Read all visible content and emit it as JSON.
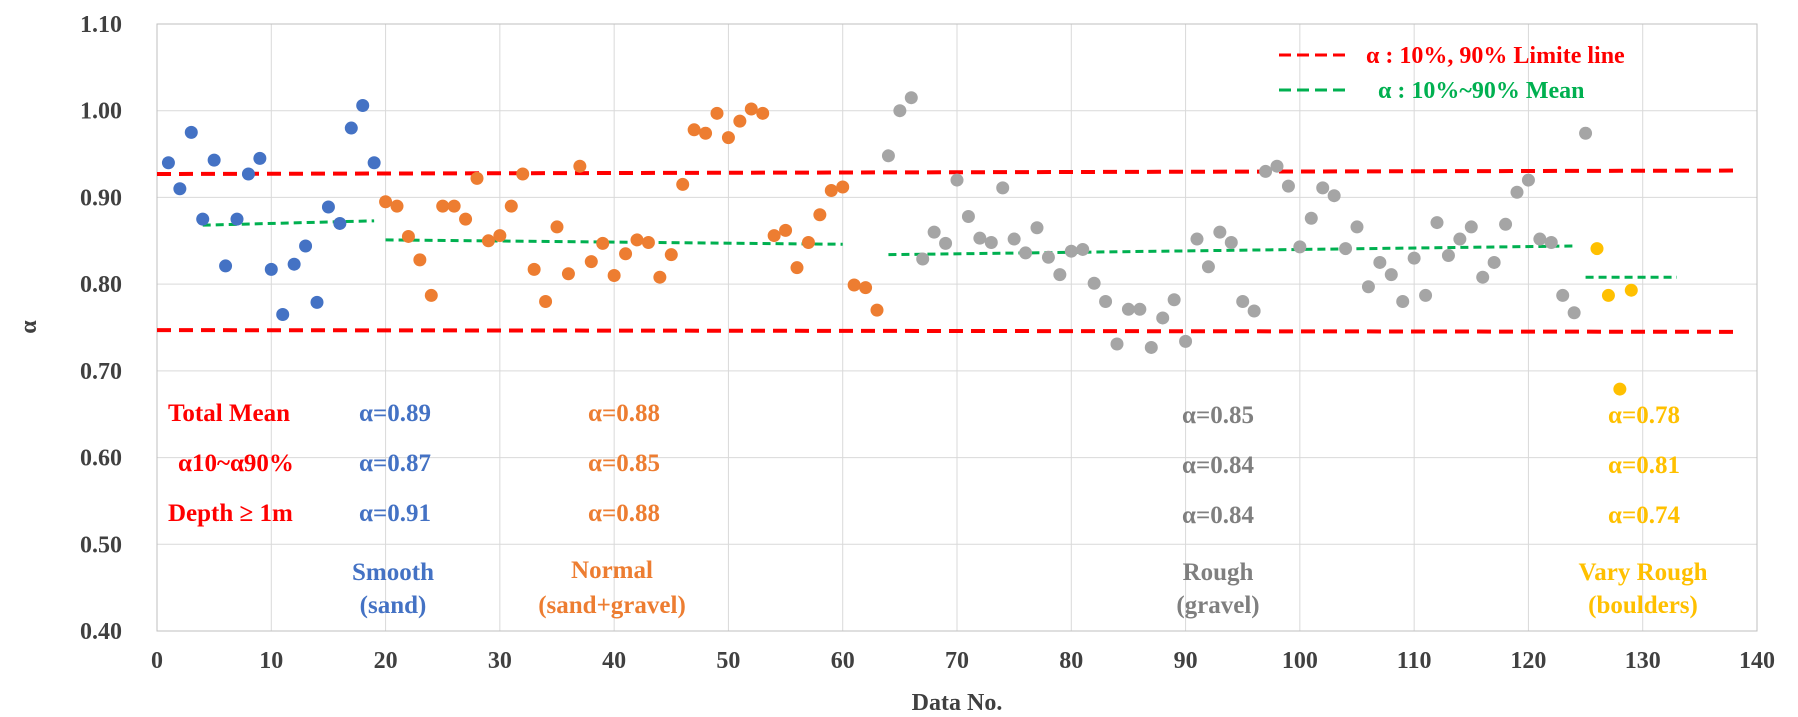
{
  "chart_data": {
    "type": "scatter",
    "xlabel": "Data No.",
    "ylabel": "α",
    "xlim": [
      0,
      140
    ],
    "ylim": [
      0.4,
      1.1
    ],
    "x_ticks": [
      "0",
      "10",
      "20",
      "30",
      "40",
      "50",
      "60",
      "70",
      "80",
      "90",
      "100",
      "110",
      "120",
      "130",
      "140"
    ],
    "y_ticks": [
      "0.40",
      "0.50",
      "0.60",
      "0.70",
      "0.80",
      "0.90",
      "1.00",
      "1.10"
    ],
    "grid": true,
    "legend_position": "top-right",
    "legend": [
      {
        "label": "α : 10%, 90% Limite line",
        "color": "#ff0000"
      },
      {
        "label": "α : 10%~90% Mean",
        "color": "#00b050"
      }
    ],
    "limit_lines": [
      {
        "x": [
          0,
          138
        ],
        "y": [
          0.747,
          0.745
        ],
        "color": "#ff0000"
      },
      {
        "x": [
          0,
          138
        ],
        "y": [
          0.927,
          0.931
        ],
        "color": "#ff0000"
      }
    ],
    "mean_lines": [
      {
        "x": [
          4,
          19
        ],
        "y": [
          0.868,
          0.873
        ]
      },
      {
        "x": [
          20,
          60
        ],
        "y": [
          0.851,
          0.846
        ]
      },
      {
        "x": [
          64,
          124
        ],
        "y": [
          0.834,
          0.844
        ]
      },
      {
        "x": [
          125,
          133
        ],
        "y": [
          0.808,
          0.808
        ]
      }
    ],
    "series": [
      {
        "name": "Smooth (sand)",
        "color": "#4472c4",
        "points": [
          [
            1,
            0.94
          ],
          [
            2,
            0.91
          ],
          [
            3,
            0.975
          ],
          [
            4,
            0.875
          ],
          [
            5,
            0.943
          ],
          [
            6,
            0.821
          ],
          [
            7,
            0.875
          ],
          [
            8,
            0.927
          ],
          [
            9,
            0.945
          ],
          [
            10,
            0.817
          ],
          [
            11,
            0.765
          ],
          [
            12,
            0.823
          ],
          [
            13,
            0.844
          ],
          [
            14,
            0.779
          ],
          [
            15,
            0.889
          ],
          [
            16,
            0.87
          ],
          [
            17,
            0.98
          ],
          [
            18,
            1.006
          ],
          [
            19,
            0.94
          ]
        ]
      },
      {
        "name": "Normal (sand+gravel)",
        "color": "#ed7d31",
        "points": [
          [
            20,
            0.895
          ],
          [
            21,
            0.89
          ],
          [
            22,
            0.855
          ],
          [
            23,
            0.828
          ],
          [
            24,
            0.787
          ],
          [
            25,
            0.89
          ],
          [
            26,
            0.89
          ],
          [
            27,
            0.875
          ],
          [
            28,
            0.922
          ],
          [
            29,
            0.85
          ],
          [
            30,
            0.856
          ],
          [
            31,
            0.89
          ],
          [
            32,
            0.927
          ],
          [
            33,
            0.817
          ],
          [
            34,
            0.78
          ],
          [
            35,
            0.866
          ],
          [
            36,
            0.812
          ],
          [
            37,
            0.936
          ],
          [
            38,
            0.826
          ],
          [
            39,
            0.847
          ],
          [
            40,
            0.81
          ],
          [
            41,
            0.835
          ],
          [
            42,
            0.851
          ],
          [
            43,
            0.848
          ],
          [
            44,
            0.808
          ],
          [
            45,
            0.834
          ],
          [
            46,
            0.915
          ],
          [
            47,
            0.978
          ],
          [
            48,
            0.974
          ],
          [
            49,
            0.997
          ],
          [
            50,
            0.969
          ],
          [
            51,
            0.988
          ],
          [
            52,
            1.002
          ],
          [
            53,
            0.997
          ],
          [
            54,
            0.856
          ],
          [
            55,
            0.862
          ],
          [
            56,
            0.819
          ],
          [
            57,
            0.848
          ],
          [
            58,
            0.88
          ],
          [
            59,
            0.908
          ],
          [
            60,
            0.912
          ],
          [
            61,
            0.799
          ],
          [
            62,
            0.796
          ],
          [
            63,
            0.77
          ]
        ]
      },
      {
        "name": "Rough (gravel)",
        "color": "#a5a5a5",
        "points": [
          [
            64,
            0.948
          ],
          [
            65,
            1.0
          ],
          [
            66,
            1.015
          ],
          [
            67,
            0.829
          ],
          [
            68,
            0.86
          ],
          [
            69,
            0.847
          ],
          [
            70,
            0.92
          ],
          [
            71,
            0.878
          ],
          [
            72,
            0.853
          ],
          [
            73,
            0.848
          ],
          [
            74,
            0.911
          ],
          [
            75,
            0.852
          ],
          [
            76,
            0.836
          ],
          [
            77,
            0.865
          ],
          [
            78,
            0.831
          ],
          [
            79,
            0.811
          ],
          [
            80,
            0.838
          ],
          [
            81,
            0.84
          ],
          [
            82,
            0.801
          ],
          [
            83,
            0.78
          ],
          [
            84,
            0.731
          ],
          [
            85,
            0.771
          ],
          [
            86,
            0.771
          ],
          [
            87,
            0.727
          ],
          [
            88,
            0.761
          ],
          [
            89,
            0.782
          ],
          [
            90,
            0.734
          ],
          [
            91,
            0.852
          ],
          [
            92,
            0.82
          ],
          [
            93,
            0.86
          ],
          [
            94,
            0.848
          ],
          [
            95,
            0.78
          ],
          [
            96,
            0.769
          ],
          [
            97,
            0.93
          ],
          [
            98,
            0.936
          ],
          [
            99,
            0.913
          ],
          [
            100,
            0.843
          ],
          [
            101,
            0.876
          ],
          [
            102,
            0.911
          ],
          [
            103,
            0.902
          ],
          [
            104,
            0.841
          ],
          [
            105,
            0.866
          ],
          [
            106,
            0.797
          ],
          [
            107,
            0.825
          ],
          [
            108,
            0.811
          ],
          [
            109,
            0.78
          ],
          [
            110,
            0.83
          ],
          [
            111,
            0.787
          ],
          [
            112,
            0.871
          ],
          [
            113,
            0.833
          ],
          [
            114,
            0.852
          ],
          [
            115,
            0.866
          ],
          [
            116,
            0.808
          ],
          [
            117,
            0.825
          ],
          [
            118,
            0.869
          ],
          [
            119,
            0.906
          ],
          [
            120,
            0.92
          ],
          [
            121,
            0.852
          ],
          [
            122,
            0.848
          ],
          [
            123,
            0.787
          ],
          [
            124,
            0.767
          ],
          [
            125,
            0.974
          ]
        ]
      },
      {
        "name": "Vary Rough (boulders)",
        "color": "#ffc000",
        "points": [
          [
            126,
            0.841
          ],
          [
            127,
            0.787
          ],
          [
            128,
            0.679
          ],
          [
            129,
            0.793
          ]
        ]
      }
    ],
    "row_labels": [
      {
        "text": "Total Mean",
        "color": "#ff0000"
      },
      {
        "text": "α10~α90%",
        "color": "#ff0000"
      },
      {
        "text": "Depth ≥ 1m",
        "color": "#ff0000"
      }
    ],
    "groups": [
      {
        "name": "Smooth",
        "sub": "(sand)",
        "color": "#4472c4",
        "values": [
          "α=0.89",
          "α=0.87",
          "α=0.91"
        ]
      },
      {
        "name": "Normal",
        "sub": "(sand+gravel)",
        "color": "#ed7d31",
        "values": [
          "α=0.88",
          "α=0.85",
          "α=0.88"
        ]
      },
      {
        "name": "Rough",
        "sub": "(gravel)",
        "color": "#7f7f7f",
        "values": [
          "α=0.85",
          "α=0.84",
          "α=0.84"
        ]
      },
      {
        "name": "Vary Rough",
        "sub": "(boulders)",
        "color": "#ffc000",
        "values": [
          "α=0.78",
          "α=0.81",
          "α=0.74"
        ]
      }
    ]
  }
}
